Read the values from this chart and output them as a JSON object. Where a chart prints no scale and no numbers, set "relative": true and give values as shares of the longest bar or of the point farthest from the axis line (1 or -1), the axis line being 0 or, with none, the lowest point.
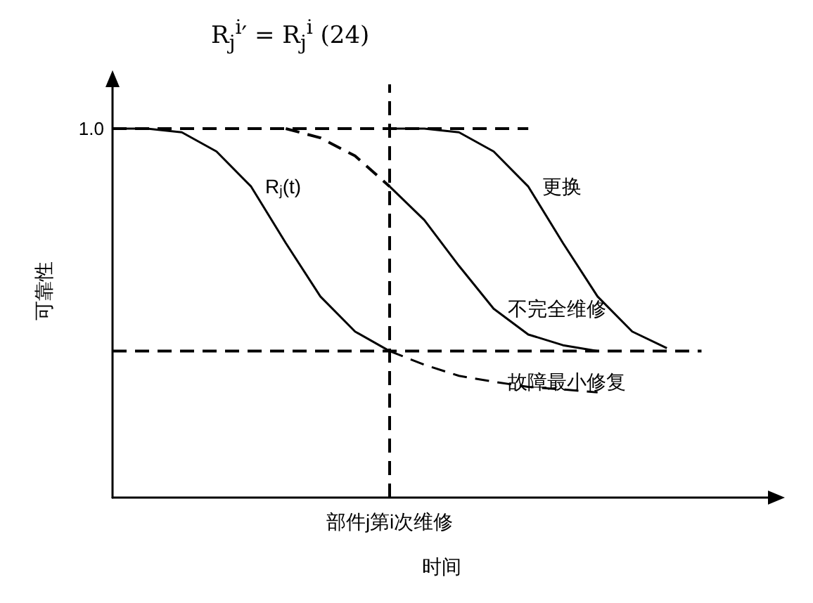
{
  "chart_data": {
    "type": "line",
    "ylabel": "可靠性",
    "xlabel": "时间",
    "relative": true,
    "legend": false,
    "grid": false,
    "annotations": [
      "R$_{j}$$^{i}$′ = R$_{j}$$^{i}$          (24)",
      "部件j第i次维修",
      "1.0"
    ],
    "categories": [
      null,
      null,
      null,
      null,
      null,
      null,
      null,
      null,
      null,
      null,
      null,
      null,
      null,
      null,
      null,
      null,
      null,
      null,
      null,
      null
    ],
    "series": [
      {
        "name": "R$_{j}$(t)",
        "color": "#000000",
        "line_style": "solid",
        "values": [
          1,
          1,
          0.99,
          0.938,
          0.843,
          0.69,
          0.545,
          0.45,
          0.397,
          null,
          null,
          null,
          null,
          null,
          null,
          null,
          null,
          null,
          null,
          null
        ]
      },
      {
        "color": "#000000",
        "line_style": "dashed",
        "values": [
          null,
          null,
          null,
          null,
          null,
          1,
          0.975,
          0.926,
          0.843,
          null,
          null,
          null,
          null,
          null,
          null,
          null,
          null,
          null,
          null,
          null
        ]
      },
      {
        "name": "不完全维修",
        "color": "#000000",
        "line_style": "solid",
        "values": [
          null,
          null,
          null,
          null,
          null,
          null,
          null,
          null,
          0.843,
          0.752,
          0.628,
          0.512,
          0.442,
          0.413,
          0.397,
          null,
          null,
          null,
          null,
          null
        ]
      },
      {
        "name": "更换",
        "color": "#000000",
        "line_style": "solid",
        "values": [
          null,
          null,
          null,
          null,
          null,
          null,
          null,
          null,
          1,
          1,
          0.99,
          0.938,
          0.843,
          0.69,
          0.545,
          0.45,
          0.405,
          null,
          null,
          null
        ]
      },
      {
        "name": "故障最小修复",
        "color": "#000000",
        "line_style": "dashed",
        "values": [
          null,
          null,
          null,
          null,
          null,
          null,
          null,
          null,
          0.397,
          0.36,
          0.33,
          0.314,
          0.3,
          0.293,
          0.285,
          null,
          null,
          null,
          null,
          null
        ]
      },
      {
        "color": "#000000",
        "line_style": "dashed",
        "values": [
          1,
          1,
          1,
          1,
          1,
          1,
          1,
          1,
          1,
          1,
          1,
          1,
          1,
          null,
          null,
          null,
          null,
          null,
          null,
          null
        ]
      },
      {
        "color": "#000000",
        "line_style": "dashed",
        "values": [
          0.397,
          0.397,
          0.397,
          0.397,
          0.397,
          0.397,
          0.397,
          0.397,
          0.397,
          0.397,
          0.397,
          0.397,
          0.397,
          0.397,
          0.397,
          0.397,
          0.397,
          0.397,
          null,
          null
        ]
      }
    ]
  }
}
